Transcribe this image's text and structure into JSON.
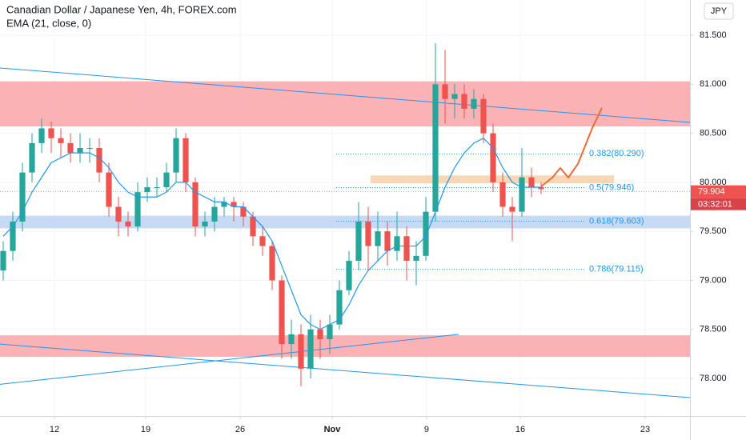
{
  "chart_data": {
    "type": "candlestick",
    "title": "Canadian Dollar / Japanese Yen, 4h, FOREX.com",
    "subtitle": "EMA (21, close, 0)",
    "currency": "JPY",
    "up_color": "#26a69a",
    "down_color": "#ef5350",
    "x": [
      0,
      1,
      2,
      3,
      4,
      5,
      6,
      7,
      8,
      9,
      10,
      11,
      12,
      13,
      14,
      15,
      16,
      17,
      18,
      19,
      20,
      21,
      22,
      23,
      24,
      25,
      26,
      27,
      28,
      29,
      30,
      31,
      32,
      33,
      34,
      35,
      36,
      37,
      38,
      39,
      40,
      41,
      42,
      43,
      44,
      45,
      46,
      47,
      48,
      49,
      50,
      51,
      52,
      53,
      54,
      55,
      56
    ],
    "open": [
      79.1,
      79.3,
      79.6,
      80.1,
      80.4,
      80.55,
      80.45,
      80.4,
      80.3,
      80.35,
      80.35,
      80.1,
      79.75,
      79.6,
      79.55,
      79.9,
      79.95,
      79.95,
      80.1,
      80.45,
      80.0,
      79.55,
      79.6,
      79.75,
      79.8,
      79.75,
      79.65,
      79.45,
      79.35,
      79.0,
      78.35,
      78.45,
      78.1,
      78.5,
      78.4,
      78.55,
      78.9,
      79.2,
      79.6,
      79.35,
      79.5,
      79.3,
      79.45,
      79.2,
      79.25,
      79.7,
      81.0,
      80.85,
      80.9,
      80.75,
      80.85,
      80.5,
      80.0,
      79.75,
      79.7,
      80.05,
      79.95
    ],
    "high": [
      79.4,
      79.7,
      80.2,
      80.5,
      80.65,
      80.62,
      80.55,
      80.5,
      80.5,
      80.45,
      80.45,
      80.2,
      79.85,
      79.7,
      80.0,
      80.05,
      80.05,
      80.2,
      80.55,
      80.5,
      80.05,
      79.7,
      79.85,
      79.85,
      79.85,
      79.8,
      79.7,
      79.55,
      79.4,
      79.05,
      78.6,
      78.55,
      78.65,
      78.6,
      78.65,
      79.0,
      79.3,
      79.8,
      79.75,
      79.7,
      79.6,
      79.7,
      79.55,
      79.4,
      79.85,
      81.42,
      81.35,
      81.0,
      81.0,
      80.95,
      80.9,
      80.6,
      80.1,
      79.85,
      80.35,
      80.15,
      80.0
    ],
    "low": [
      79.0,
      79.2,
      79.5,
      80.0,
      80.3,
      80.3,
      80.25,
      80.2,
      80.2,
      80.2,
      80.0,
      79.65,
      79.45,
      79.45,
      79.5,
      79.8,
      79.85,
      79.9,
      80.0,
      79.9,
      79.45,
      79.45,
      79.5,
      79.65,
      79.6,
      79.55,
      79.35,
      79.25,
      78.9,
      78.2,
      78.2,
      77.92,
      78.0,
      78.2,
      78.25,
      78.5,
      78.85,
      79.1,
      79.1,
      79.2,
      79.15,
      79.2,
      79.0,
      78.95,
      79.2,
      79.6,
      80.6,
      80.65,
      80.65,
      80.65,
      80.4,
      79.9,
      79.65,
      79.4,
      79.65,
      79.85,
      79.88
    ],
    "close": [
      79.3,
      79.6,
      80.1,
      80.4,
      80.55,
      80.45,
      80.4,
      80.3,
      80.35,
      80.35,
      80.1,
      79.75,
      79.6,
      79.55,
      79.9,
      79.95,
      79.95,
      80.1,
      80.45,
      80.0,
      79.55,
      79.6,
      79.75,
      79.8,
      79.75,
      79.65,
      79.45,
      79.35,
      79.0,
      78.35,
      78.45,
      78.1,
      78.5,
      78.4,
      78.55,
      78.9,
      79.2,
      79.6,
      79.35,
      79.5,
      79.3,
      79.45,
      79.2,
      79.25,
      79.7,
      81.0,
      80.85,
      80.9,
      80.75,
      80.85,
      80.5,
      80.0,
      79.75,
      79.7,
      80.05,
      79.95,
      79.93
    ],
    "ema": {
      "color": "#2196f3",
      "values": [
        79.45,
        79.55,
        79.7,
        79.9,
        80.05,
        80.2,
        80.25,
        80.3,
        80.3,
        80.3,
        80.25,
        80.15,
        80.0,
        79.9,
        79.85,
        79.85,
        79.85,
        79.9,
        80.0,
        80.0,
        79.9,
        79.85,
        79.8,
        79.8,
        79.75,
        79.75,
        79.65,
        79.55,
        79.4,
        79.15,
        78.9,
        78.65,
        78.55,
        78.5,
        78.55,
        78.6,
        78.75,
        78.95,
        79.1,
        79.2,
        79.3,
        79.35,
        79.35,
        79.35,
        79.45,
        79.7,
        79.95,
        80.15,
        80.3,
        80.4,
        80.45,
        80.35,
        80.15,
        80.0,
        79.95,
        79.95,
        79.95
      ]
    },
    "xlim": [
      -0.333,
      71.5
    ],
    "ylim": [
      77.617,
      81.859
    ],
    "xticks": [
      {
        "value": 5.33,
        "label": "12"
      },
      {
        "value": 14.83,
        "label": "19"
      },
      {
        "value": 24.67,
        "label": "26"
      },
      {
        "value": 34.25,
        "label": "Nov"
      },
      {
        "value": 44.08,
        "label": "9"
      },
      {
        "value": 53.83,
        "label": "16"
      },
      {
        "value": 66.83,
        "label": "23"
      }
    ],
    "yticks": [
      {
        "value": 78,
        "label": "78.000"
      },
      {
        "value": 78.5,
        "label": "78.500"
      },
      {
        "value": 79,
        "label": "79.000"
      },
      {
        "value": 79.5,
        "label": "79.500"
      },
      {
        "value": 80,
        "label": "80.000"
      },
      {
        "value": 80.5,
        "label": "80.500"
      },
      {
        "value": 81,
        "label": "81.000"
      },
      {
        "value": 81.5,
        "label": "81.500"
      }
    ],
    "zones": [
      {
        "y": [
          80.57,
          81.03
        ],
        "color": "#f9a5a8"
      },
      {
        "y": [
          78.22,
          78.44
        ],
        "color": "#f9a5a8"
      },
      {
        "y": [
          79.53,
          79.66
        ],
        "color": "#bcd4f5"
      },
      {
        "y": [
          79.99,
          80.07
        ],
        "x": [
          38.25,
          63.58
        ],
        "color": "#f8cfa8"
      }
    ],
    "trendlines": [
      {
        "x": [
          -0.333,
          71.5
        ],
        "y": [
          81.166,
          80.611
        ],
        "color": "#2196f3"
      },
      {
        "x": [
          -0.333,
          71.5
        ],
        "y": [
          78.35,
          77.805
        ],
        "color": "#2196f3"
      },
      {
        "x": [
          -0.333,
          47.42
        ],
        "y": [
          77.94,
          78.45
        ],
        "color": "#2196f3"
      }
    ],
    "projection": {
      "color": "#f06a35",
      "x": [
        56,
        57.17,
        58,
        58.83,
        59.83,
        61.33,
        62.33
      ],
      "y": [
        79.958,
        80.048,
        80.146,
        80.048,
        80.187,
        80.554,
        80.758
      ]
    },
    "fib": {
      "x": [
        34.67,
        60.5
      ],
      "color": "#2196f3",
      "levels": [
        {
          "value": 80.29,
          "label": "0.382(80.290)"
        },
        {
          "value": 79.946,
          "label": "0.5(79.946)"
        },
        {
          "value": 79.603,
          "label": "0.618(79.603)"
        },
        {
          "value": 79.115,
          "label": "0.786(79.115)"
        }
      ]
    },
    "last_price": {
      "value": 79.904,
      "label": "79.904",
      "color": "#ef5350"
    },
    "countdown": "03:32:01"
  }
}
